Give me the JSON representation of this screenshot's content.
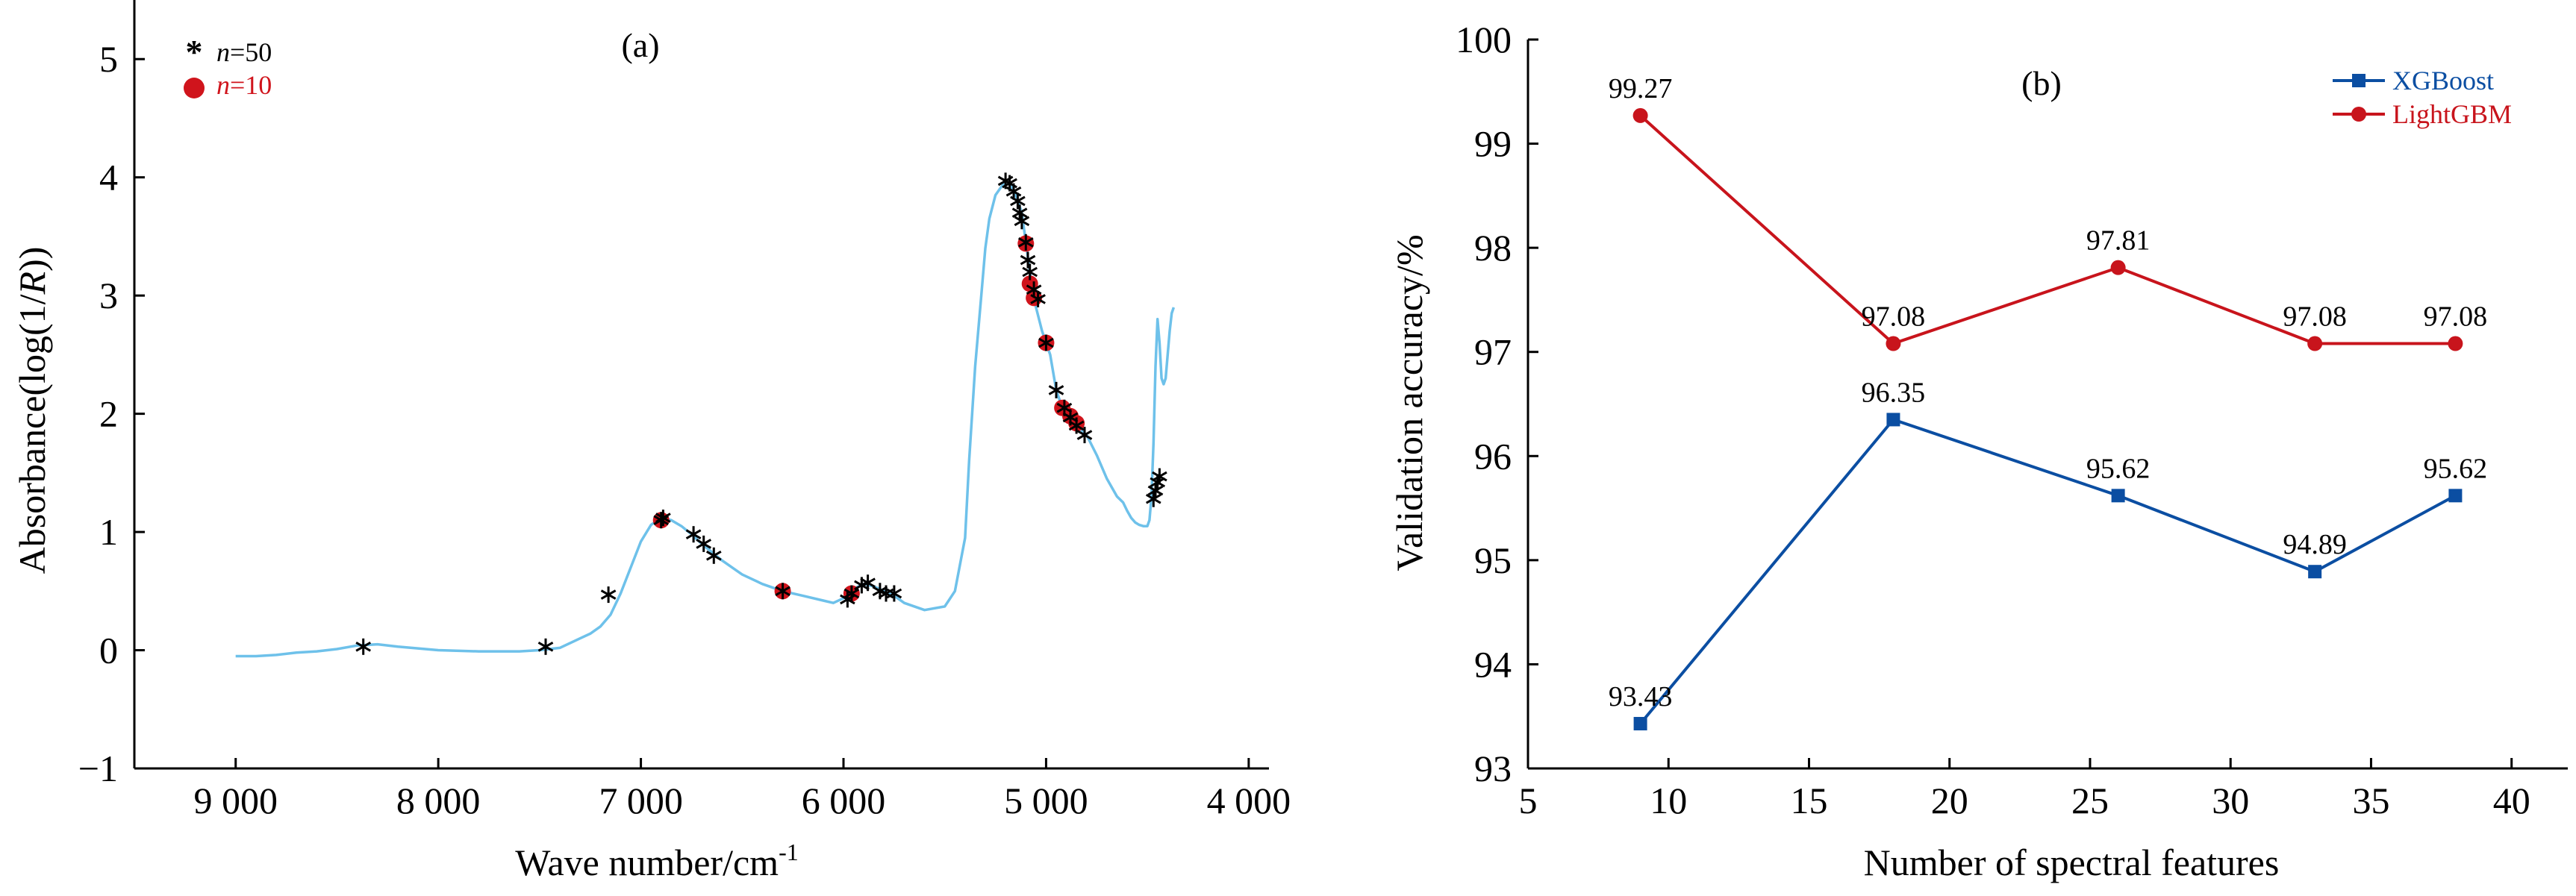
{
  "colors": {
    "spectrum": "#6EC1EA",
    "star": "#000000",
    "dot": "#D0141C",
    "xgboost": "#0B4EA2",
    "lightgbm": "#C8141C",
    "axis": "#000000"
  },
  "chart_data": [
    {
      "panel_label": "(a)",
      "type": "line",
      "xlabel": "Wave number/cm",
      "xlabel_sup": "-1",
      "ylabel_prefix": "Absorbance(log(1/",
      "ylabel_italic": "R",
      "ylabel_suffix": "))",
      "xlim": [
        9500,
        3900
      ],
      "ylim": [
        -1,
        5.5
      ],
      "x_ticks": [
        9000,
        8000,
        7000,
        6000,
        5000,
        4000
      ],
      "x_tick_labels": [
        "9 000",
        "8 000",
        "7 000",
        "6 000",
        "5 000",
        "4 000"
      ],
      "y_ticks": [
        -1,
        0,
        1,
        2,
        3,
        4,
        5
      ],
      "y_tick_labels": [
        "−1",
        "0",
        "1",
        "2",
        "3",
        "4",
        "5"
      ],
      "legend": [
        {
          "marker": "*",
          "italic": "n",
          "text": "=50",
          "color": "#000000"
        },
        {
          "marker": "●",
          "italic": "n",
          "text": "=10",
          "color": "#D0141C"
        }
      ],
      "spectrum": {
        "x": [
          9000,
          8900,
          8800,
          8700,
          8600,
          8500,
          8400,
          8300,
          8200,
          8000,
          7800,
          7600,
          7500,
          7400,
          7300,
          7250,
          7200,
          7150,
          7100,
          7050,
          7000,
          6950,
          6900,
          6850,
          6800,
          6750,
          6700,
          6650,
          6600,
          6500,
          6400,
          6300,
          6200,
          6100,
          6050,
          6000,
          5950,
          5900,
          5850,
          5800,
          5750,
          5700,
          5600,
          5500,
          5450,
          5400,
          5380,
          5350,
          5320,
          5300,
          5280,
          5250,
          5200,
          5180,
          5150,
          5120,
          5100,
          5080,
          5050,
          5020,
          5000,
          4980,
          4950,
          4920,
          4900,
          4880,
          4850,
          4800,
          4750,
          4700,
          4650,
          4620,
          4600,
          4580,
          4560,
          4540,
          4520,
          4500,
          4490,
          4480,
          4470,
          4460,
          4450,
          4440,
          4430,
          4420,
          4410,
          4400,
          4390,
          4380,
          4370
        ],
        "y": [
          -0.05,
          -0.05,
          -0.04,
          -0.02,
          -0.01,
          0.01,
          0.04,
          0.05,
          0.03,
          0.0,
          -0.01,
          -0.01,
          0.0,
          0.02,
          0.1,
          0.14,
          0.2,
          0.3,
          0.48,
          0.7,
          0.92,
          1.06,
          1.12,
          1.1,
          1.05,
          0.98,
          0.9,
          0.83,
          0.76,
          0.64,
          0.56,
          0.5,
          0.46,
          0.42,
          0.4,
          0.44,
          0.52,
          0.56,
          0.54,
          0.5,
          0.46,
          0.4,
          0.34,
          0.37,
          0.5,
          0.95,
          1.6,
          2.4,
          3.0,
          3.4,
          3.65,
          3.85,
          3.97,
          3.95,
          3.85,
          3.7,
          3.45,
          3.2,
          2.9,
          2.7,
          2.6,
          2.5,
          2.2,
          2.05,
          2.0,
          1.95,
          1.9,
          1.82,
          1.65,
          1.45,
          1.3,
          1.25,
          1.18,
          1.12,
          1.08,
          1.06,
          1.05,
          1.05,
          1.1,
          1.3,
          1.75,
          2.4,
          2.8,
          2.6,
          2.3,
          2.25,
          2.3,
          2.5,
          2.7,
          2.85,
          2.9
        ]
      },
      "stars_n50": {
        "x": [
          8370,
          7470,
          7160,
          6900,
          6890,
          6740,
          6690,
          6640,
          6300,
          5980,
          5960,
          5910,
          5880,
          5820,
          5790,
          5750,
          5200,
          5180,
          5160,
          5140,
          5130,
          5120,
          5100,
          5090,
          5080,
          5060,
          5040,
          5000,
          4950,
          4910,
          4880,
          4850,
          4810,
          4470,
          4460,
          4450,
          4440
        ],
        "y": [
          0.03,
          0.03,
          0.47,
          1.1,
          1.12,
          0.98,
          0.9,
          0.8,
          0.5,
          0.43,
          0.48,
          0.55,
          0.57,
          0.5,
          0.48,
          0.48,
          3.97,
          3.95,
          3.88,
          3.8,
          3.7,
          3.63,
          3.45,
          3.3,
          3.2,
          3.05,
          2.97,
          2.6,
          2.2,
          2.05,
          1.97,
          1.9,
          1.82,
          1.28,
          1.35,
          1.42,
          1.47
        ]
      },
      "dots_n10": {
        "x": [
          6900,
          6300,
          5960,
          5100,
          5080,
          5060,
          5000,
          4920,
          4880,
          4850
        ],
        "y": [
          1.1,
          0.5,
          0.48,
          3.44,
          3.1,
          2.98,
          2.6,
          2.05,
          1.98,
          1.92
        ]
      }
    },
    {
      "panel_label": "(b)",
      "type": "line",
      "xlabel": "Number of spectral features",
      "ylabel": "Validation accuracy/%",
      "xlim": [
        5,
        42
      ],
      "ylim": [
        93,
        100
      ],
      "x_ticks": [
        5,
        10,
        15,
        20,
        25,
        30,
        35,
        40
      ],
      "x_tick_labels": [
        "5",
        "10",
        "15",
        "20",
        "25",
        "30",
        "35",
        "40"
      ],
      "y_ticks": [
        93,
        94,
        95,
        96,
        97,
        98,
        99,
        100
      ],
      "y_tick_labels": [
        "93",
        "94",
        "95",
        "96",
        "97",
        "98",
        "99",
        "100"
      ],
      "x": [
        9,
        18,
        26,
        33,
        38
      ],
      "series": [
        {
          "name": "XGBoost",
          "values": [
            93.43,
            96.35,
            95.62,
            94.89,
            95.62
          ],
          "labels": [
            "93.43",
            "96.35",
            "95.62",
            "94.89",
            "95.62"
          ],
          "color": "#0B4EA2",
          "marker": "square"
        },
        {
          "name": "LightGBM",
          "values": [
            99.27,
            97.08,
            97.81,
            97.08,
            97.08
          ],
          "labels": [
            "99.27",
            "97.08",
            "97.81",
            "97.08",
            "97.08"
          ],
          "color": "#C8141C",
          "marker": "circle"
        }
      ]
    }
  ]
}
